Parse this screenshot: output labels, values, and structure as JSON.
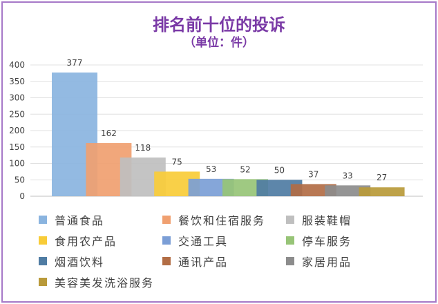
{
  "chart_data": {
    "type": "bar",
    "title": "排名前十位的投诉",
    "subtitle": "（单位：件）",
    "ylim": [
      0,
      400
    ],
    "yticks": [
      "0",
      "50",
      "100",
      "150",
      "200",
      "250",
      "300",
      "350",
      "400"
    ],
    "grid": true,
    "legend_position": "bottom",
    "categories": [
      "普通食品",
      "餐饮和住宿服务",
      "服装鞋帽",
      "食用农产品",
      "交通工具",
      "停车服务",
      "烟酒饮料",
      "通讯产品",
      "家居用品",
      "美容美发洗浴服务"
    ],
    "values": [
      377,
      162,
      118,
      75,
      53,
      52,
      50,
      37,
      33,
      27
    ],
    "value_labels": [
      "377",
      "162",
      "118",
      "75",
      "53",
      "52",
      "50",
      "37",
      "33",
      "27"
    ],
    "colors": [
      "#8ab4df",
      "#f0a070",
      "#bfbfbf",
      "#f8cc38",
      "#7b9ed6",
      "#97c477",
      "#4f7ca3",
      "#b26d45",
      "#8c8c8c",
      "#b99a3a"
    ]
  }
}
